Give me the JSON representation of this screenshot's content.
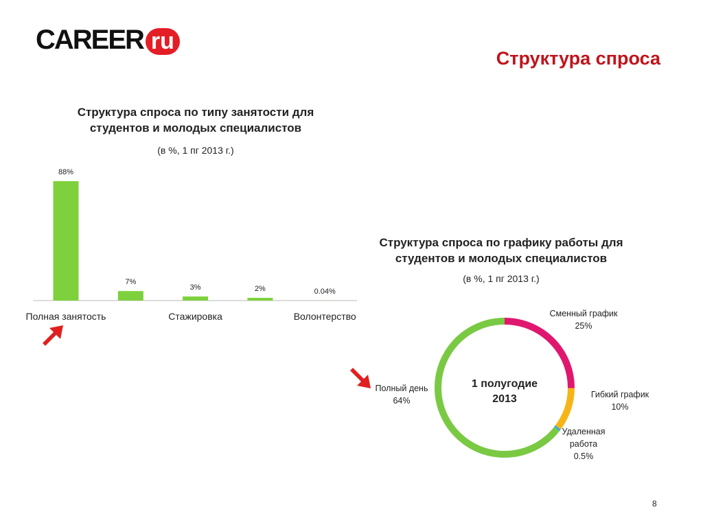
{
  "header": {
    "logo": "CAREER",
    "logo_suffix": "ru",
    "title": "Структура спроса"
  },
  "page_number": "8",
  "chart_data": [
    {
      "type": "bar",
      "title": "Структура спроса по типу занятости для студентов и молодых специалистов",
      "subtitle": "(в %, 1 пг 2013 г.)",
      "categories": [
        "Полная занятость",
        null,
        "Стажировка",
        null,
        "Волонтерство"
      ],
      "values": [
        88,
        7,
        3,
        2,
        0.04
      ],
      "value_labels": [
        "88%",
        "7%",
        "3%",
        "2%",
        "0.04%"
      ],
      "color": "#7ed13c"
    },
    {
      "type": "pie",
      "title": "Структура спроса по графику работы для студентов и молодых специалистов",
      "subtitle": "(в %, 1 пг 2013 г.)",
      "center_label": "1 полугодие 2013",
      "categories": [
        "Сменный график",
        "Гибкий график",
        "Удаленная работа",
        "Полный день"
      ],
      "values": [
        25,
        10,
        0.5,
        64
      ],
      "value_labels": [
        "25%",
        "10%",
        "0.5%",
        "64%"
      ],
      "colors": [
        "#e0176f",
        "#f6b517",
        "#3aa9e0",
        "#7ac943"
      ]
    }
  ]
}
